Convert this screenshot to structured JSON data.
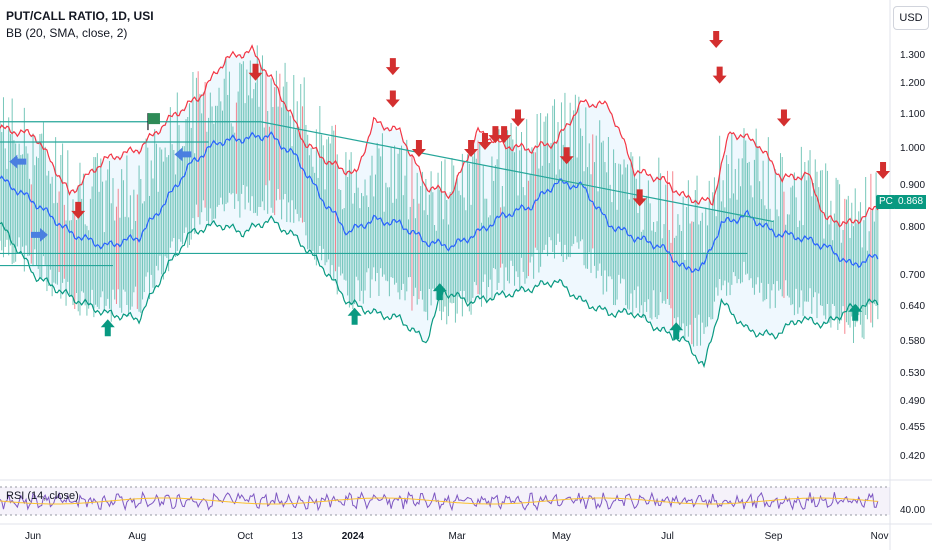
{
  "chart_data": {
    "type": "line",
    "title": "PUT/CALL RATIO, 1D, USI",
    "subtitle": "BB (20, SMA, close, 2)",
    "indicator_label": "RSI (14, close)",
    "currency_label": "USD",
    "scale": "log",
    "ylim": [
      0.4,
      1.36
    ],
    "y_ticks": [
      "1.300",
      "1.200",
      "1.100",
      "1.000",
      "0.900",
      "0.800",
      "0.700",
      "0.640",
      "0.580",
      "0.530",
      "0.490",
      "0.455",
      "0.420"
    ],
    "x_ticks": [
      {
        "label": "Jun",
        "day": 19,
        "bold": false
      },
      {
        "label": "Aug",
        "day": 79,
        "bold": false
      },
      {
        "label": "Oct",
        "day": 141,
        "bold": false
      },
      {
        "label": "13",
        "day": 171,
        "bold": false
      },
      {
        "label": "2024",
        "day": 203,
        "bold": true
      },
      {
        "label": "Mar",
        "day": 263,
        "bold": false
      },
      {
        "label": "May",
        "day": 323,
        "bold": false
      },
      {
        "label": "Jul",
        "day": 384,
        "bold": false
      },
      {
        "label": "Sep",
        "day": 445,
        "bold": false
      },
      {
        "label": "Nov",
        "day": 506,
        "bold": false
      }
    ],
    "last_value_tag": "PC",
    "last_value": "0.868",
    "rsi_level": "40.00",
    "series": [
      {
        "name": "BB upper",
        "color": "#f23645",
        "points": [
          [
            0,
            1.06
          ],
          [
            20,
            1.04
          ],
          [
            40,
            0.88
          ],
          [
            60,
            0.97
          ],
          [
            80,
            1.0
          ],
          [
            100,
            1.1
          ],
          [
            115,
            1.16
          ],
          [
            130,
            1.29
          ],
          [
            145,
            1.32
          ],
          [
            160,
            1.18
          ],
          [
            175,
            1.02
          ],
          [
            190,
            0.96
          ],
          [
            205,
            0.93
          ],
          [
            215,
            1.08
          ],
          [
            230,
            1.05
          ],
          [
            245,
            0.9
          ],
          [
            260,
            0.88
          ],
          [
            275,
            1.05
          ],
          [
            290,
            1.01
          ],
          [
            305,
            1.0
          ],
          [
            320,
            1.02
          ],
          [
            335,
            1.14
          ],
          [
            350,
            1.13
          ],
          [
            365,
            0.94
          ],
          [
            380,
            0.92
          ],
          [
            395,
            0.87
          ],
          [
            410,
            0.86
          ],
          [
            420,
            1.05
          ],
          [
            435,
            1.02
          ],
          [
            450,
            0.92
          ],
          [
            465,
            0.93
          ],
          [
            475,
            0.82
          ],
          [
            490,
            0.81
          ],
          [
            505,
            0.85
          ]
        ]
      },
      {
        "name": "BB basis",
        "color": "#2962ff",
        "points": [
          [
            0,
            0.92
          ],
          [
            20,
            0.86
          ],
          [
            40,
            0.79
          ],
          [
            60,
            0.76
          ],
          [
            80,
            0.78
          ],
          [
            95,
            0.86
          ],
          [
            110,
            0.96
          ],
          [
            125,
            1.02
          ],
          [
            140,
            1.03
          ],
          [
            155,
            1.04
          ],
          [
            170,
            0.98
          ],
          [
            185,
            0.87
          ],
          [
            200,
            0.79
          ],
          [
            215,
            0.82
          ],
          [
            230,
            0.81
          ],
          [
            245,
            0.77
          ],
          [
            260,
            0.76
          ],
          [
            275,
            0.79
          ],
          [
            290,
            0.83
          ],
          [
            305,
            0.85
          ],
          [
            320,
            0.91
          ],
          [
            335,
            0.9
          ],
          [
            350,
            0.81
          ],
          [
            365,
            0.78
          ],
          [
            380,
            0.76
          ],
          [
            395,
            0.71
          ],
          [
            405,
            0.72
          ],
          [
            415,
            0.81
          ],
          [
            430,
            0.83
          ],
          [
            445,
            0.79
          ],
          [
            460,
            0.78
          ],
          [
            475,
            0.76
          ],
          [
            490,
            0.72
          ],
          [
            505,
            0.74
          ]
        ]
      },
      {
        "name": "BB lower",
        "color": "#089981",
        "points": [
          [
            0,
            0.81
          ],
          [
            20,
            0.7
          ],
          [
            40,
            0.66
          ],
          [
            60,
            0.63
          ],
          [
            80,
            0.62
          ],
          [
            95,
            0.71
          ],
          [
            110,
            0.79
          ],
          [
            125,
            0.81
          ],
          [
            140,
            0.79
          ],
          [
            155,
            0.82
          ],
          [
            170,
            0.78
          ],
          [
            185,
            0.72
          ],
          [
            200,
            0.65
          ],
          [
            215,
            0.63
          ],
          [
            230,
            0.62
          ],
          [
            245,
            0.58
          ],
          [
            255,
            0.67
          ],
          [
            270,
            0.65
          ],
          [
            285,
            0.66
          ],
          [
            300,
            0.67
          ],
          [
            320,
            0.69
          ],
          [
            335,
            0.65
          ],
          [
            350,
            0.63
          ],
          [
            365,
            0.63
          ],
          [
            380,
            0.6
          ],
          [
            395,
            0.58
          ],
          [
            405,
            0.54
          ],
          [
            415,
            0.65
          ],
          [
            430,
            0.6
          ],
          [
            445,
            0.59
          ],
          [
            460,
            0.62
          ],
          [
            475,
            0.61
          ],
          [
            490,
            0.64
          ],
          [
            505,
            0.65
          ]
        ]
      }
    ],
    "trendlines": [
      {
        "color": "#26a69a",
        "from": [
          0,
          1.08
        ],
        "to": [
          150,
          1.08
        ]
      },
      {
        "color": "#26a69a",
        "from": [
          0,
          1.02
        ],
        "to": [
          120,
          1.02
        ]
      },
      {
        "color": "#26a69a",
        "from": [
          0,
          0.72
        ],
        "to": [
          65,
          0.72
        ]
      },
      {
        "color": "#26a69a",
        "from": [
          0,
          0.745
        ],
        "to": [
          430,
          0.745
        ]
      },
      {
        "color": "#26a69a",
        "from": [
          150,
          1.08
        ],
        "to": [
          445,
          0.815
        ]
      }
    ],
    "signals": [
      {
        "type": "sell",
        "day": 45,
        "value": 0.84
      },
      {
        "type": "sell",
        "day": 147,
        "value": 1.24
      },
      {
        "type": "sell",
        "day": 226,
        "value": 1.26
      },
      {
        "type": "sell",
        "day": 226,
        "value": 1.15
      },
      {
        "type": "sell",
        "day": 241,
        "value": 1.0
      },
      {
        "type": "sell",
        "day": 271,
        "value": 1.0
      },
      {
        "type": "sell",
        "day": 279,
        "value": 1.02
      },
      {
        "type": "sell",
        "day": 285,
        "value": 1.04
      },
      {
        "type": "sell",
        "day": 290,
        "value": 1.04
      },
      {
        "type": "sell",
        "day": 298,
        "value": 1.09
      },
      {
        "type": "sell",
        "day": 326,
        "value": 0.98
      },
      {
        "type": "sell",
        "day": 368,
        "value": 0.87
      },
      {
        "type": "sell",
        "day": 412,
        "value": 1.36
      },
      {
        "type": "sell",
        "day": 414,
        "value": 1.23
      },
      {
        "type": "sell",
        "day": 451,
        "value": 1.09
      },
      {
        "type": "sell",
        "day": 508,
        "value": 0.94
      },
      {
        "type": "buy",
        "day": 62,
        "value": 0.605
      },
      {
        "type": "buy",
        "day": 204,
        "value": 0.625
      },
      {
        "type": "buy",
        "day": 253,
        "value": 0.67
      },
      {
        "type": "buy",
        "day": 389,
        "value": 0.6
      },
      {
        "type": "buy",
        "day": 492,
        "value": 0.632
      },
      {
        "type": "left",
        "day": 10,
        "value": 0.965
      },
      {
        "type": "left",
        "day": 105,
        "value": 0.985
      },
      {
        "type": "right",
        "day": 23,
        "value": 0.785
      },
      {
        "type": "flag",
        "day": 88,
        "value": 1.085
      }
    ]
  }
}
